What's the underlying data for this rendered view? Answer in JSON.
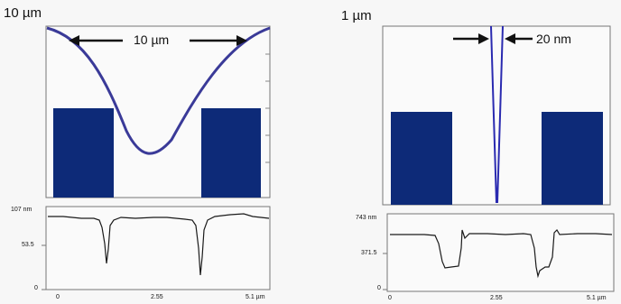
{
  "colors": {
    "navy": "#0d2a78",
    "curve": "#3a3a98",
    "profile": "#1a1a1a"
  },
  "left": {
    "scale_label": "10 µm",
    "annotation": "10 µm",
    "profile": {
      "y_top_label": "107 nm",
      "y_mid_label": "53.5",
      "y_zero_label": "0",
      "x_labels": [
        "0",
        "2.55",
        "5.1 µm"
      ]
    }
  },
  "right": {
    "scale_label": "1 µm",
    "annotation": "20 nm",
    "profile": {
      "y_top_label": "743 nm",
      "y_mid_label": "371.5",
      "y_zero_label": "0",
      "x_labels": [
        "0",
        "2.55",
        "5.1 µm"
      ]
    }
  }
}
